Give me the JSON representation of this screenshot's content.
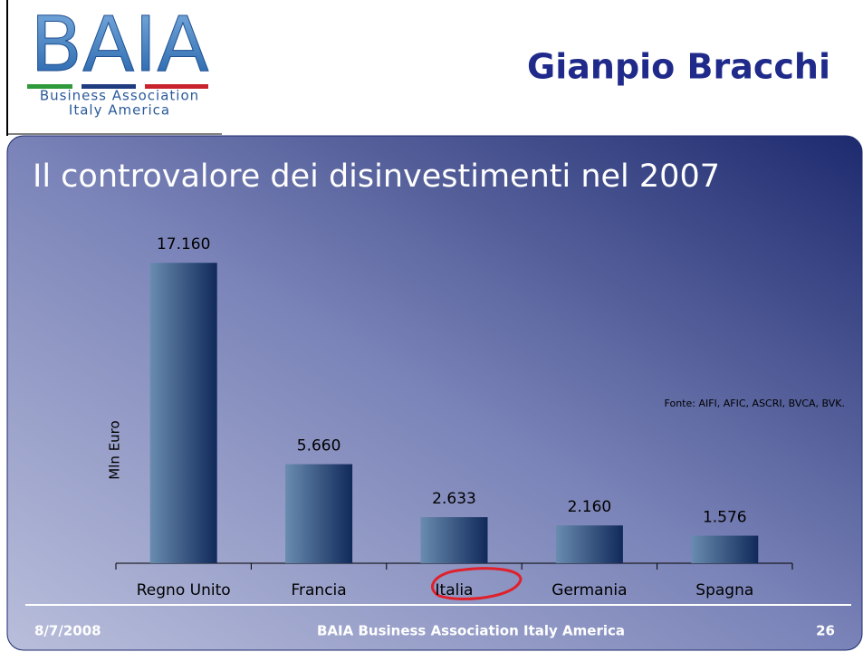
{
  "header": {
    "logo": "BAIA",
    "logo_line1": "Business Association",
    "logo_line2": "Italy America",
    "speaker": "Gianpio Bracchi"
  },
  "chart_data": {
    "type": "bar",
    "title": "Il controvalore dei disinvestimenti nel 2007",
    "y_label": "Mln Euro",
    "source": "Fonte: AIFI, AFIC, ASCRI, BVCA, BVK.",
    "categories": [
      "Regno Unito",
      "Francia",
      "Italia",
      "Germania",
      "Spagna"
    ],
    "values": [
      17160,
      5660,
      2633,
      2160,
      1576
    ],
    "value_labels": [
      "17.160",
      "5.660",
      "2.633",
      "2.160",
      "1.576"
    ],
    "color": "#1e3a6e",
    "ylim": [
      0,
      18000
    ]
  },
  "footer": {
    "date": "8/7/2008",
    "center": "BAIA Business Association Italy America",
    "page": "26"
  }
}
